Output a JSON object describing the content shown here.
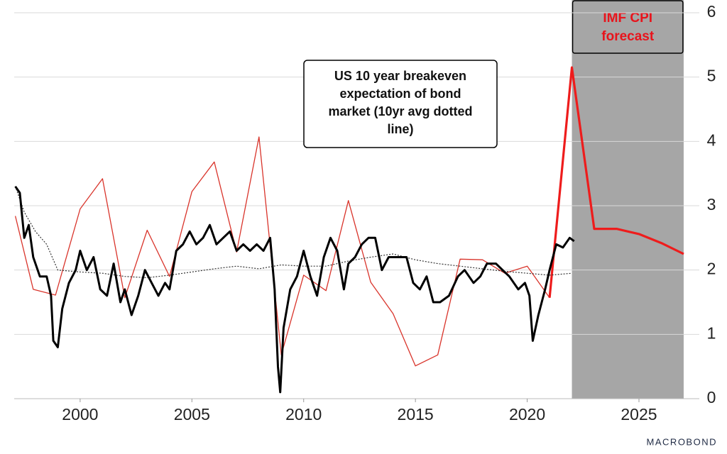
{
  "chart_data": {
    "type": "line",
    "xlim": [
      1997.05,
      2027.7
    ],
    "xticks": [
      2000,
      2005,
      2010,
      2015,
      2020,
      2025
    ],
    "ylim": [
      0,
      6
    ],
    "yticks": [
      0,
      1,
      2,
      3,
      4,
      5,
      6
    ],
    "grid": true,
    "forecast_region": [
      2022,
      2027
    ],
    "forecast_label": [
      "IMF CPI",
      "forecast"
    ],
    "annotation": [
      "US 10 year breakeven",
      "expectation of bond",
      "market (10yr avg dotted",
      "line)"
    ],
    "source": "MACROBOND",
    "series": [
      {
        "color": "#d9342b",
        "style": "solid",
        "width": 1.3,
        "x": [
          1997.1,
          1997.9,
          1998.9,
          2000,
          2001,
          2002,
          2003,
          2004,
          2005,
          2006,
          2007,
          2008,
          2009,
          2010,
          2011,
          2012,
          2013,
          2014,
          2015,
          2016,
          2017,
          2018,
          2019,
          2020,
          2021
        ],
        "values": [
          2.84,
          1.7,
          1.61,
          2.95,
          3.42,
          1.57,
          2.62,
          1.9,
          3.22,
          3.68,
          2.28,
          4.07,
          0.68,
          1.92,
          1.68,
          3.08,
          1.81,
          1.32,
          0.51,
          0.68,
          2.17,
          2.16,
          1.95,
          2.06,
          1.57
        ]
      },
      {
        "color": "#ee1c1c",
        "style": "solid",
        "width": 3.2,
        "x": [
          2021,
          2022,
          2023,
          2024,
          2025,
          2026,
          2027
        ],
        "values": [
          1.57,
          5.15,
          2.64,
          2.64,
          2.56,
          2.42,
          2.25
        ]
      },
      {
        "color": "#333333",
        "style": "dotted",
        "width": 1.2,
        "x": [
          1997.1,
          1997.5,
          1998,
          1998.5,
          1999,
          2000,
          2001,
          2002,
          2003,
          2004,
          2005,
          2006,
          2007,
          2008,
          2009,
          2010,
          2011,
          2012,
          2013,
          2014,
          2015,
          2016,
          2017,
          2018,
          2019,
          2020,
          2021,
          2022
        ],
        "values": [
          3.3,
          2.9,
          2.6,
          2.4,
          2.0,
          1.97,
          1.95,
          1.9,
          1.88,
          1.92,
          1.97,
          2.02,
          2.06,
          2.02,
          2.08,
          2.06,
          2.06,
          2.14,
          2.2,
          2.25,
          2.16,
          2.1,
          2.06,
          2.02,
          1.98,
          1.95,
          1.92,
          1.95
        ]
      },
      {
        "color": "#000000",
        "style": "solid",
        "width": 3,
        "x": [
          1997.1,
          1997.3,
          1997.5,
          1997.7,
          1997.9,
          1998.2,
          1998.5,
          1998.7,
          1998.8,
          1999.0,
          1999.2,
          1999.5,
          1999.8,
          2000.0,
          2000.3,
          2000.6,
          2000.9,
          2001.2,
          2001.5,
          2001.8,
          2002.0,
          2002.3,
          2002.6,
          2002.9,
          2003.2,
          2003.5,
          2003.8,
          2004.0,
          2004.3,
          2004.6,
          2004.9,
          2005.2,
          2005.5,
          2005.8,
          2006.1,
          2006.4,
          2006.7,
          2007.0,
          2007.3,
          2007.6,
          2007.9,
          2008.2,
          2008.5,
          2008.7,
          2008.85,
          2008.95,
          2009.1,
          2009.4,
          2009.7,
          2010.0,
          2010.3,
          2010.6,
          2010.9,
          2011.2,
          2011.5,
          2011.8,
          2012.0,
          2012.3,
          2012.6,
          2012.9,
          2013.2,
          2013.5,
          2013.8,
          2014.2,
          2014.6,
          2014.9,
          2015.2,
          2015.5,
          2015.8,
          2016.1,
          2016.5,
          2016.9,
          2017.2,
          2017.6,
          2017.9,
          2018.2,
          2018.6,
          2018.9,
          2019.2,
          2019.6,
          2019.9,
          2020.1,
          2020.25,
          2020.5,
          2020.8,
          2021.0,
          2021.3,
          2021.6,
          2021.9,
          2022.1
        ],
        "values": [
          3.3,
          3.2,
          2.5,
          2.7,
          2.2,
          1.9,
          1.9,
          1.6,
          0.9,
          0.8,
          1.4,
          1.8,
          2.0,
          2.3,
          2.0,
          2.2,
          1.7,
          1.6,
          2.1,
          1.5,
          1.7,
          1.3,
          1.6,
          2.0,
          1.8,
          1.6,
          1.8,
          1.7,
          2.3,
          2.4,
          2.6,
          2.4,
          2.5,
          2.7,
          2.4,
          2.5,
          2.6,
          2.3,
          2.4,
          2.3,
          2.4,
          2.3,
          2.5,
          1.7,
          0.5,
          0.1,
          1.1,
          1.7,
          1.9,
          2.3,
          1.9,
          1.6,
          2.2,
          2.5,
          2.3,
          1.7,
          2.1,
          2.2,
          2.4,
          2.5,
          2.5,
          2.0,
          2.2,
          2.2,
          2.2,
          1.8,
          1.7,
          1.9,
          1.5,
          1.5,
          1.6,
          1.9,
          2.0,
          1.8,
          1.9,
          2.1,
          2.1,
          2.0,
          1.9,
          1.7,
          1.8,
          1.6,
          0.9,
          1.3,
          1.7,
          2.0,
          2.4,
          2.35,
          2.5,
          2.45
        ]
      }
    ]
  }
}
